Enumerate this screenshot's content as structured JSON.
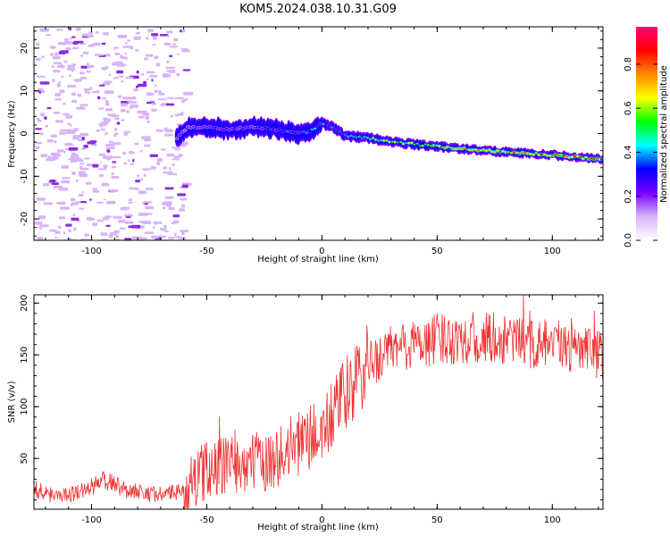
{
  "title": "KOM5.2024.038.10.31.G09",
  "chart_data": [
    {
      "type": "heatmap",
      "xlabel": "Height of straight line (km)",
      "ylabel": "Frequency (Hz)",
      "xlim": [
        -125,
        122
      ],
      "ylim": [
        -25,
        25
      ],
      "x_ticks": [
        -100,
        -50,
        0,
        50,
        100
      ],
      "y_ticks": [
        -20,
        -10,
        0,
        10,
        20
      ],
      "colorbar": {
        "label": "Normalized spectral amplitude",
        "range": [
          0,
          0.97
        ],
        "ticks": [
          0.0,
          0.2,
          0.4,
          0.6,
          0.8
        ],
        "colormap": [
          "#ffffff",
          "#d8b4f8",
          "#7700ff",
          "#0000ff",
          "#00ffff",
          "#00ff00",
          "#ffff00",
          "#ff8800",
          "#ff0000",
          "#ff0077"
        ]
      },
      "noise_region_x": [
        -125,
        -60
      ],
      "ridge": {
        "x": [
          -63,
          -58,
          -50,
          -40,
          -30,
          -20,
          -10,
          -5,
          0,
          5,
          10,
          20,
          30,
          40,
          50,
          60,
          70,
          80,
          90,
          100,
          110,
          122
        ],
        "freq": [
          -1,
          1.5,
          1.5,
          1,
          1.5,
          1,
          0,
          0.5,
          2.5,
          1.5,
          -0.5,
          -1,
          -2,
          -2.5,
          -3,
          -3.5,
          -4,
          -4.3,
          -4.7,
          -5,
          -5.5,
          -6
        ],
        "amplitude": [
          0.22,
          0.25,
          0.3,
          0.3,
          0.3,
          0.35,
          0.35,
          0.4,
          0.45,
          0.35,
          0.4,
          0.55,
          0.6,
          0.65,
          0.7,
          0.72,
          0.75,
          0.78,
          0.8,
          0.82,
          0.85,
          0.8
        ]
      }
    },
    {
      "type": "line",
      "xlabel": "Height of straight line (km)",
      "ylabel": "SNR (v/v)",
      "xlim": [
        -125,
        122
      ],
      "ylim": [
        1,
        208
      ],
      "x_ticks": [
        -100,
        -50,
        0,
        50,
        100
      ],
      "y_ticks": [
        50,
        100,
        150,
        200
      ],
      "color": "#ee3333",
      "trend": {
        "x": [
          -125,
          -110,
          -100,
          -95,
          -85,
          -70,
          -60,
          -55,
          -50,
          -40,
          -30,
          -20,
          -10,
          0,
          10,
          20,
          30,
          40,
          50,
          60,
          70,
          80,
          90,
          100,
          110,
          122
        ],
        "snr": [
          15,
          15,
          22,
          30,
          20,
          15,
          18,
          30,
          40,
          45,
          45,
          50,
          65,
          75,
          110,
          140,
          155,
          160,
          165,
          167,
          165,
          165,
          160,
          160,
          155,
          150
        ]
      }
    }
  ]
}
